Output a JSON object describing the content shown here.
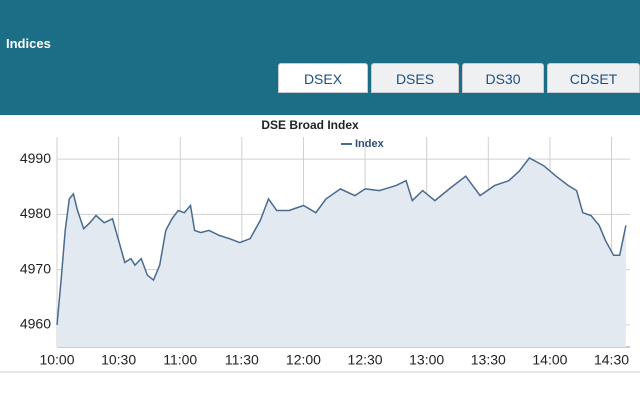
{
  "header": {
    "title": "Indices"
  },
  "tabs": [
    {
      "label": "DSEX"
    },
    {
      "label": "DSES"
    },
    {
      "label": "DS30"
    },
    {
      "label": "CDSET"
    }
  ],
  "chart_data": {
    "type": "line",
    "title": "DSE Broad Index",
    "x": [
      600,
      602,
      604,
      606,
      608,
      610,
      613,
      616,
      619,
      623,
      627,
      630,
      633,
      636,
      638,
      641,
      644,
      647,
      650,
      653,
      656,
      659,
      662,
      665,
      667,
      670,
      674,
      679,
      684,
      689,
      694,
      699,
      703,
      707,
      713,
      720,
      726,
      731,
      738,
      745,
      750,
      757,
      765,
      770,
      773,
      778,
      784,
      791,
      799,
      806,
      813,
      820,
      825,
      830,
      837,
      843,
      849,
      853,
      856,
      860,
      864,
      867,
      871,
      874,
      877
    ],
    "series": [
      {
        "name": "Index",
        "color": "#4a6a8e",
        "values": [
          4960,
          4968.1,
          4977.1,
          4982.8,
          4983.7,
          4980.7,
          4977.4,
          4978.5,
          4979.8,
          4978.5,
          4979.2,
          4975.3,
          4971.3,
          4972,
          4970.8,
          4972,
          4969,
          4968.1,
          4970.8,
          4977.1,
          4979.2,
          4980.7,
          4980.3,
          4981.6,
          4977.1,
          4976.7,
          4977.1,
          4976.2,
          4975.6,
          4974.9,
          4975.6,
          4978.9,
          4982.8,
          4980.7,
          4980.7,
          4981.6,
          4980.3,
          4982.8,
          4984.6,
          4983.4,
          4984.6,
          4984.3,
          4985.2,
          4986.1,
          4982.5,
          4984.3,
          4982.5,
          4984.6,
          4986.9,
          4983.4,
          4985.2,
          4986.1,
          4987.8,
          4990.2,
          4988.8,
          4986.9,
          4985.2,
          4984.3,
          4980.3,
          4979.8,
          4978,
          4975.3,
          4972.6,
          4972.6,
          4978
        ]
      }
    ],
    "xlim": [
      600,
      879
    ],
    "xticks": [
      {
        "value": 600,
        "label": "10:00"
      },
      {
        "value": 630,
        "label": "10:30"
      },
      {
        "value": 660,
        "label": "11:00"
      },
      {
        "value": 690,
        "label": "11:30"
      },
      {
        "value": 720,
        "label": "12:00"
      },
      {
        "value": 750,
        "label": "12:30"
      },
      {
        "value": 780,
        "label": "13:00"
      },
      {
        "value": 810,
        "label": "13:30"
      },
      {
        "value": 840,
        "label": "14:00"
      },
      {
        "value": 870,
        "label": "14:30"
      }
    ],
    "ylim": [
      4956,
      4994
    ],
    "yticks": [
      4960,
      4970,
      4980,
      4990
    ],
    "grid": true
  }
}
